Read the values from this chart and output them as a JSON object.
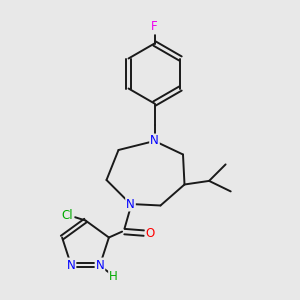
{
  "background_color": "#e8e8e8",
  "bond_color": "#1a1a1a",
  "atom_colors": {
    "F": "#ee00ee",
    "N": "#0000ff",
    "O": "#ff0000",
    "Cl": "#00aa00",
    "H": "#00aa00",
    "C": "#1a1a1a"
  },
  "figsize": [
    3.0,
    3.0
  ],
  "dpi": 100,
  "lw": 1.4,
  "font": 8.5
}
